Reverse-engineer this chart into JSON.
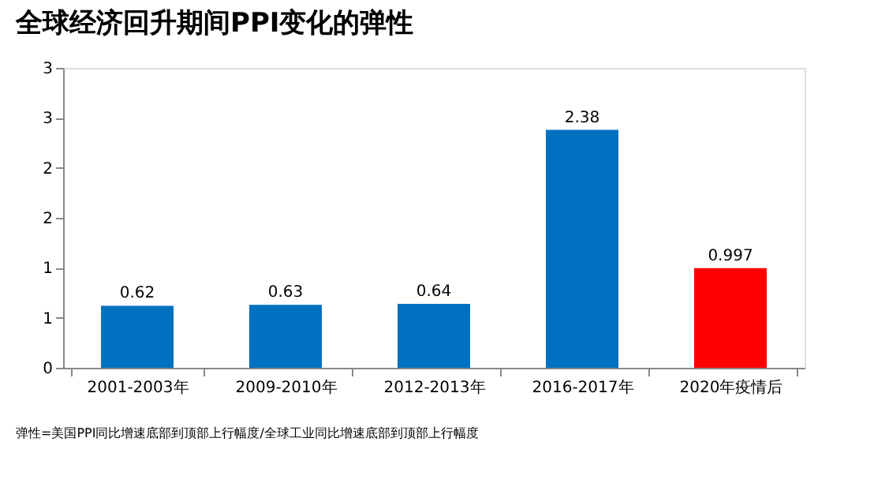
{
  "chart_data": {
    "type": "bar",
    "title": "全球经济回升期间PPI变化的弹性",
    "categories": [
      "2001-2003年",
      "2009-2010年",
      "2012-2013年",
      "2016-2017年",
      "2020年疫情后"
    ],
    "values": [
      0.62,
      0.63,
      0.64,
      2.38,
      0.997
    ],
    "colors": [
      "#0070c0",
      "#0070c0",
      "#0070c0",
      "#0070c0",
      "#ff0000"
    ],
    "ylim": [
      0,
      3
    ],
    "yticks": [
      0,
      {
        "value": 0.5,
        "label": "1"
      },
      1,
      {
        "value": 1.5,
        "label": "2"
      },
      2,
      {
        "value": 2.5,
        "label": "3"
      },
      3
    ],
    "data_labels": true,
    "grid": false,
    "annotations": [
      "弹性=美国PPI同比增速底部到顶部上行幅度/全球工业同比增速底部到顶部上行幅度"
    ]
  }
}
